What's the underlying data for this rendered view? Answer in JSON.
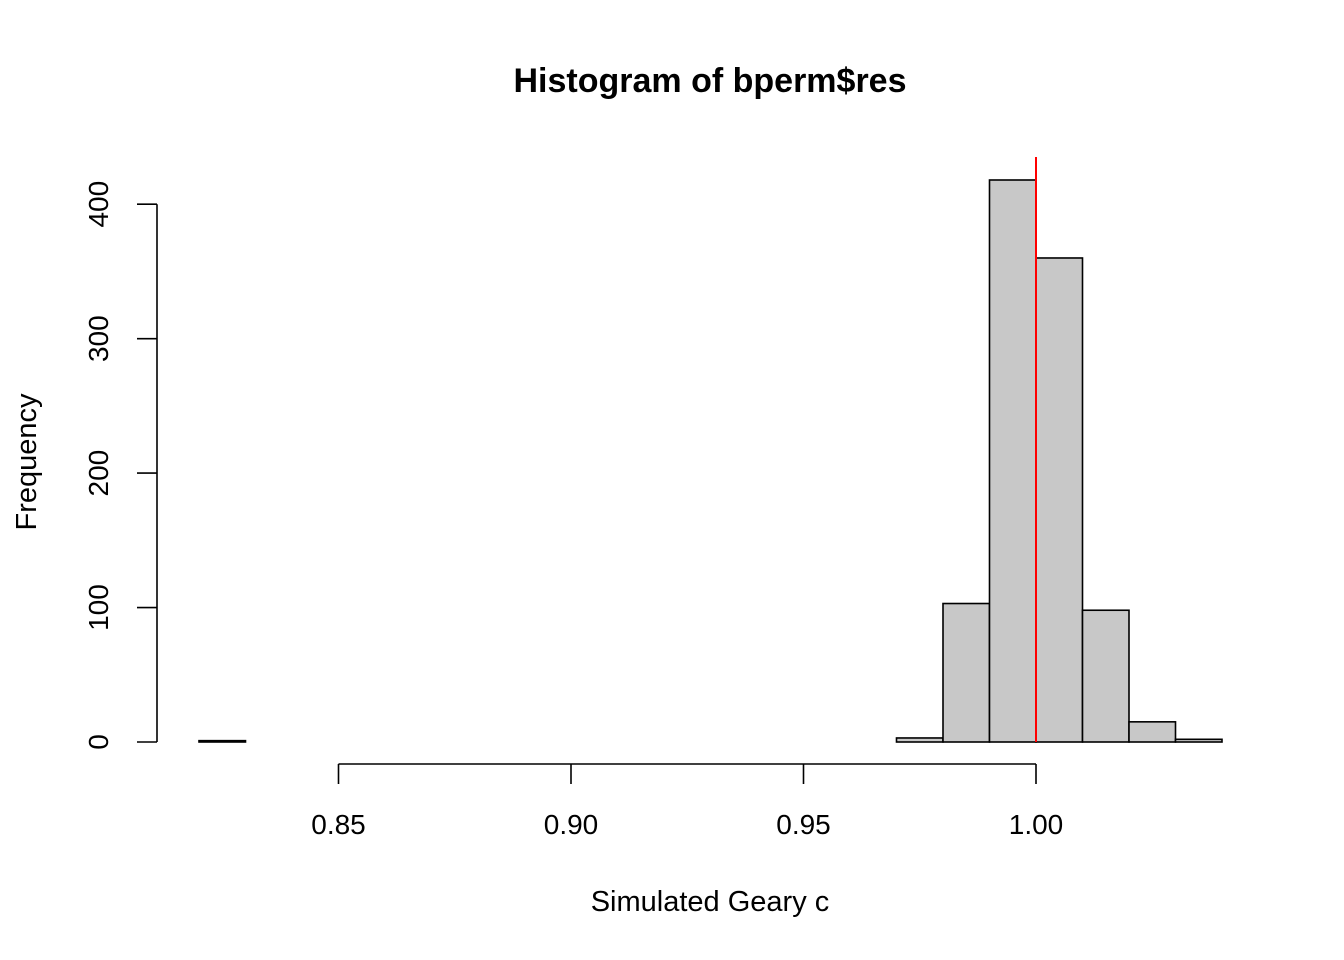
{
  "chart_data": {
    "type": "bar",
    "title": "Histogram of bperm$res",
    "xlabel": "Simulated Geary c",
    "ylabel": "Frequency",
    "bin_width": 0.01,
    "bins": [
      {
        "x0": 0.82,
        "x1": 0.83,
        "count": 1
      },
      {
        "x0": 0.83,
        "x1": 0.84,
        "count": 0
      },
      {
        "x0": 0.84,
        "x1": 0.85,
        "count": 0
      },
      {
        "x0": 0.85,
        "x1": 0.86,
        "count": 0
      },
      {
        "x0": 0.86,
        "x1": 0.87,
        "count": 0
      },
      {
        "x0": 0.87,
        "x1": 0.88,
        "count": 0
      },
      {
        "x0": 0.88,
        "x1": 0.89,
        "count": 0
      },
      {
        "x0": 0.89,
        "x1": 0.9,
        "count": 0
      },
      {
        "x0": 0.9,
        "x1": 0.91,
        "count": 0
      },
      {
        "x0": 0.91,
        "x1": 0.92,
        "count": 0
      },
      {
        "x0": 0.92,
        "x1": 0.93,
        "count": 0
      },
      {
        "x0": 0.93,
        "x1": 0.94,
        "count": 0
      },
      {
        "x0": 0.94,
        "x1": 0.95,
        "count": 0
      },
      {
        "x0": 0.95,
        "x1": 0.96,
        "count": 0
      },
      {
        "x0": 0.96,
        "x1": 0.97,
        "count": 0
      },
      {
        "x0": 0.97,
        "x1": 0.98,
        "count": 3
      },
      {
        "x0": 0.98,
        "x1": 0.99,
        "count": 103
      },
      {
        "x0": 0.99,
        "x1": 1.0,
        "count": 418
      },
      {
        "x0": 1.0,
        "x1": 1.01,
        "count": 360
      },
      {
        "x0": 1.01,
        "x1": 1.02,
        "count": 98
      },
      {
        "x0": 1.02,
        "x1": 1.03,
        "count": 15
      },
      {
        "x0": 1.03,
        "x1": 1.04,
        "count": 2
      }
    ],
    "xlim": [
      0.82,
      1.04
    ],
    "ylim": [
      0,
      418
    ],
    "x_ticks": [
      {
        "value": 0.85,
        "label": "0.85"
      },
      {
        "value": 0.9,
        "label": "0.90"
      },
      {
        "value": 0.95,
        "label": "0.95"
      },
      {
        "value": 1.0,
        "label": "1.00"
      }
    ],
    "y_ticks": [
      {
        "value": 0,
        "label": "0"
      },
      {
        "value": 100,
        "label": "100"
      },
      {
        "value": 200,
        "label": "200"
      },
      {
        "value": 300,
        "label": "300"
      },
      {
        "value": 400,
        "label": "400"
      }
    ],
    "reference_line": {
      "x": 1.0,
      "color": "#ff0000"
    },
    "bar_fill": "#c8c8c8",
    "bar_stroke": "#000000",
    "grid": false
  }
}
